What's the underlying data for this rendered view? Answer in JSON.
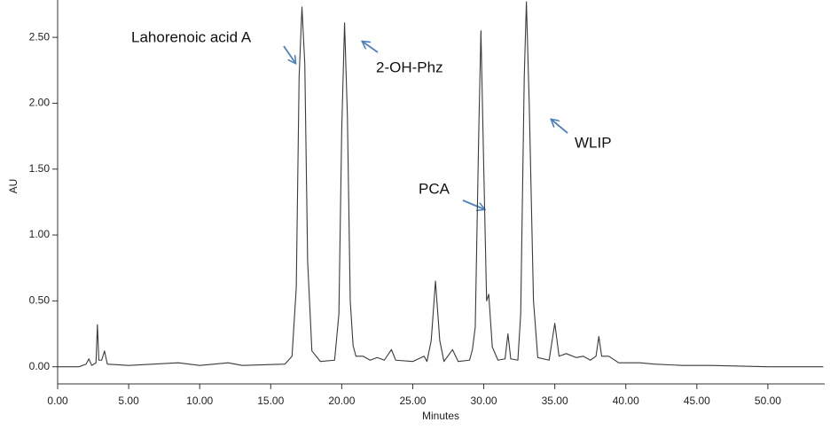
{
  "chart_data": {
    "type": "line",
    "x_label": "Minutes",
    "y_label": "AU",
    "annotations": [
      "Lahorenoic acid A",
      "2-OH-Phz",
      "PCA",
      "WLIP"
    ],
    "x": [
      0,
      1.5,
      2.0,
      2.2,
      2.4,
      2.7,
      2.8,
      2.9,
      3.1,
      3.3,
      3.5,
      5,
      8.5,
      10,
      12,
      13,
      16,
      16.5,
      16.8,
      17.0,
      17.2,
      17.4,
      17.6,
      17.9,
      18.5,
      19.5,
      19.8,
      20.0,
      20.2,
      20.4,
      20.6,
      20.8,
      21.0,
      21.5,
      22.0,
      22.5,
      23.0,
      23.5,
      23.8,
      25.0,
      25.8,
      26.0,
      26.3,
      26.6,
      26.9,
      27.2,
      27.8,
      28.2,
      29.0,
      29.2,
      29.4,
      29.65,
      29.8,
      30.0,
      30.2,
      30.35,
      30.6,
      31.0,
      31.5,
      31.7,
      31.9,
      32.4,
      32.6,
      32.85,
      33.0,
      33.2,
      33.5,
      33.8,
      34.6,
      35.0,
      35.3,
      35.8,
      36.5,
      37.0,
      37.5,
      37.9,
      38.1,
      38.3,
      38.8,
      39.5,
      41,
      42,
      44,
      46,
      50,
      53.9
    ],
    "series": [
      {
        "name": "AU",
        "color": "#3a3a3a",
        "values": [
          0.0,
          0.0,
          0.02,
          0.06,
          0.01,
          0.03,
          0.32,
          0.05,
          0.05,
          0.12,
          0.02,
          0.01,
          0.03,
          0.01,
          0.03,
          0.01,
          0.02,
          0.08,
          0.6,
          2.2,
          2.73,
          2.3,
          0.8,
          0.12,
          0.04,
          0.05,
          0.4,
          1.8,
          2.61,
          1.9,
          0.5,
          0.16,
          0.08,
          0.08,
          0.05,
          0.07,
          0.05,
          0.13,
          0.05,
          0.04,
          0.08,
          0.04,
          0.2,
          0.65,
          0.2,
          0.04,
          0.13,
          0.04,
          0.05,
          0.13,
          0.3,
          1.8,
          2.55,
          1.5,
          0.5,
          0.55,
          0.15,
          0.05,
          0.06,
          0.25,
          0.06,
          0.05,
          0.4,
          2.2,
          2.77,
          2.0,
          0.5,
          0.07,
          0.05,
          0.33,
          0.08,
          0.1,
          0.07,
          0.08,
          0.05,
          0.08,
          0.23,
          0.08,
          0.08,
          0.03,
          0.03,
          0.02,
          0.01,
          0.01,
          0.0,
          0.0
        ]
      }
    ],
    "xlim": [
      0,
      54
    ],
    "ylim": [
      -0.13,
      2.77
    ],
    "xticks": [
      {
        "value": 0,
        "label": "0.00"
      },
      {
        "value": 5,
        "label": "5.00"
      },
      {
        "value": 10,
        "label": "10.00"
      },
      {
        "value": 15,
        "label": "15.00"
      },
      {
        "value": 20,
        "label": "20.00"
      },
      {
        "value": 25,
        "label": "25.00"
      },
      {
        "value": 30,
        "label": "30.00"
      },
      {
        "value": 35,
        "label": "35.00"
      },
      {
        "value": 40,
        "label": "40.00"
      },
      {
        "value": 45,
        "label": "45.00"
      },
      {
        "value": 50,
        "label": "50.00"
      }
    ],
    "yticks": [
      {
        "value": 0,
        "label": "0.00"
      },
      {
        "value": 0.5,
        "label": "0.50"
      },
      {
        "value": 1,
        "label": "1.00"
      },
      {
        "value": 1.5,
        "label": "1.50"
      },
      {
        "value": 2,
        "label": "2.00"
      },
      {
        "value": 2.5,
        "label": "2.50"
      }
    ],
    "grid": false
  }
}
